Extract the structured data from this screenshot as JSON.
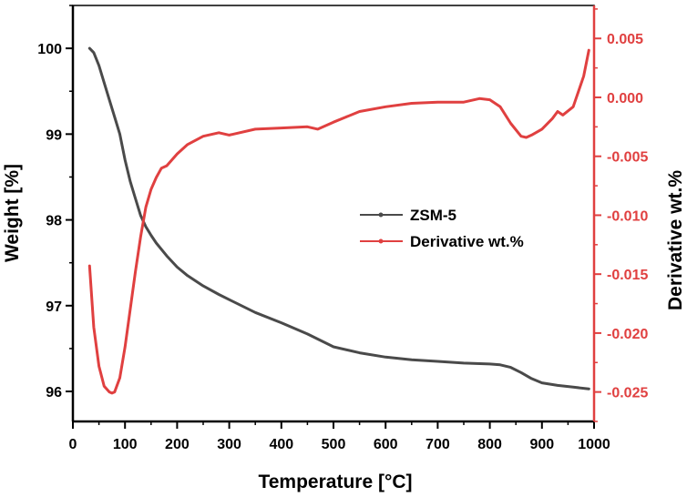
{
  "chart_data": {
    "type": "line",
    "title": "",
    "xlabel": "Temperature [°C]",
    "ylabel": "Weight [%]",
    "y2label": "Derivative wt.%",
    "xlim": [
      0,
      1000
    ],
    "ylim": [
      95.65,
      100.5
    ],
    "y2lim": [
      -0.0275,
      0.0078
    ],
    "xticks": [
      "0",
      "100",
      "200",
      "300",
      "400",
      "500",
      "600",
      "700",
      "800",
      "900",
      "1000"
    ],
    "yticks": [
      "96",
      "97",
      "98",
      "99",
      "100"
    ],
    "y2ticks": [
      "-0.025",
      "-0.020",
      "-0.015",
      "-0.010",
      "-0.005",
      "0.000",
      "0.005"
    ],
    "grid": false,
    "legend_position": "center-right",
    "colors": {
      "weight": "#4a4a4a",
      "derivative": "#e04040",
      "axis_left": "#000000",
      "axis_right": "#e04040"
    },
    "series": [
      {
        "name": "ZSM-5",
        "axis": "left",
        "x": [
          32,
          40,
          50,
          60,
          70,
          80,
          90,
          100,
          110,
          120,
          130,
          140,
          150,
          160,
          180,
          200,
          220,
          250,
          280,
          300,
          350,
          400,
          450,
          500,
          550,
          600,
          650,
          700,
          750,
          800,
          820,
          840,
          860,
          880,
          900,
          930,
          960,
          990
        ],
        "values": [
          100.0,
          99.95,
          99.8,
          99.6,
          99.4,
          99.2,
          99.0,
          98.7,
          98.45,
          98.25,
          98.05,
          97.92,
          97.82,
          97.73,
          97.58,
          97.45,
          97.35,
          97.23,
          97.13,
          97.07,
          96.92,
          96.8,
          96.67,
          96.52,
          96.45,
          96.4,
          96.37,
          96.35,
          96.33,
          96.32,
          96.31,
          96.28,
          96.22,
          96.15,
          96.1,
          96.07,
          96.05,
          96.03
        ]
      },
      {
        "name": "Derivative wt.%",
        "axis": "right",
        "x": [
          32,
          40,
          50,
          60,
          70,
          75,
          80,
          90,
          100,
          110,
          120,
          130,
          140,
          150,
          160,
          170,
          180,
          200,
          220,
          250,
          280,
          300,
          350,
          400,
          450,
          470,
          500,
          550,
          600,
          650,
          700,
          750,
          780,
          800,
          820,
          840,
          860,
          870,
          880,
          900,
          920,
          930,
          940,
          960,
          980,
          990
        ],
        "values": [
          -0.0143,
          -0.0195,
          -0.0228,
          -0.0245,
          -0.025,
          -0.0251,
          -0.025,
          -0.0238,
          -0.0212,
          -0.018,
          -0.0148,
          -0.0118,
          -0.0093,
          -0.0078,
          -0.0068,
          -0.006,
          -0.0058,
          -0.0048,
          -0.004,
          -0.0033,
          -0.003,
          -0.0032,
          -0.0027,
          -0.0026,
          -0.0025,
          -0.0027,
          -0.0021,
          -0.0012,
          -0.0008,
          -0.0005,
          -0.0004,
          -0.0004,
          -0.0001,
          -0.0002,
          -0.0008,
          -0.0022,
          -0.0033,
          -0.0034,
          -0.0032,
          -0.0027,
          -0.0018,
          -0.0012,
          -0.0015,
          -0.0008,
          0.0018,
          0.004
        ]
      }
    ]
  }
}
